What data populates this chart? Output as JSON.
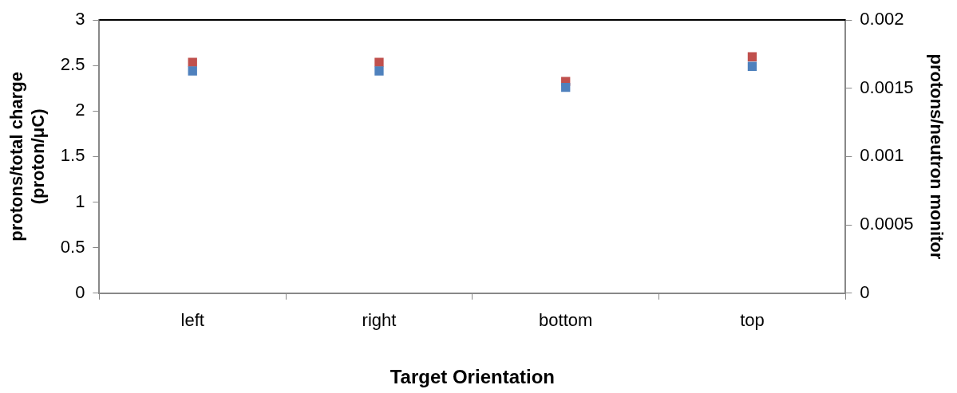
{
  "chart_data": {
    "type": "scatter",
    "xlabel": "Target Orientation",
    "ylabel": "protons/total charge (proton/μC)",
    "y2label": "protons/neutron monitor",
    "categories": [
      "left",
      "right",
      "bottom",
      "top"
    ],
    "series": [
      {
        "color": "#4f81bd",
        "values": [
          2.44,
          2.44,
          2.26,
          2.49
        ]
      },
      {
        "color": "#c0504d",
        "values": [
          0.00169,
          0.00169,
          0.00155,
          0.00173
        ],
        "axis": "y2"
      }
    ],
    "ylim": [
      0,
      3
    ],
    "yticks": [
      0,
      0.5,
      1,
      1.5,
      2,
      2.5,
      3
    ],
    "y2lim": [
      0,
      0.002
    ],
    "y2ticks": [
      0,
      0.0005,
      0.001,
      0.0015,
      0.002
    ],
    "marker": "square",
    "grid": false,
    "legend": false
  }
}
